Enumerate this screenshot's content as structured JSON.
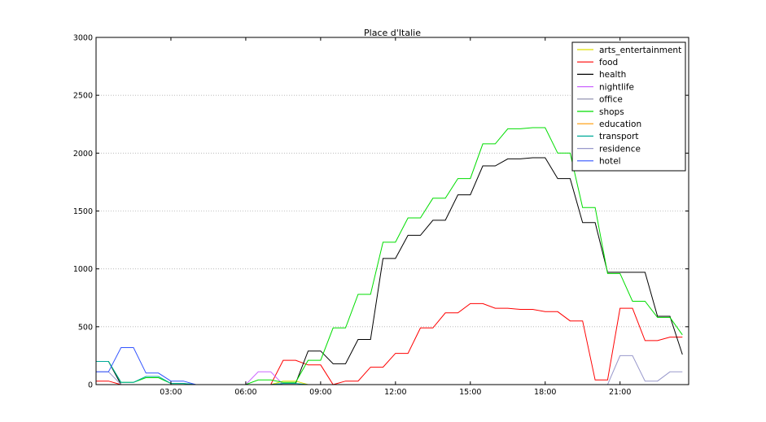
{
  "chart_data": {
    "type": "line",
    "title": "Place d'Italie",
    "xlabel": "",
    "ylabel": "",
    "x_hours": [
      0,
      0.5,
      1,
      1.5,
      2,
      2.5,
      3,
      3.5,
      4,
      4.5,
      5,
      5.5,
      6,
      6.5,
      7,
      7.5,
      8,
      8.5,
      9,
      9.5,
      10,
      10.5,
      11,
      11.5,
      12,
      12.5,
      13,
      13.5,
      14,
      14.5,
      15,
      15.5,
      16,
      16.5,
      17,
      17.5,
      18,
      18.5,
      19,
      19.5,
      20,
      20.5,
      21,
      21.5,
      22,
      22.5,
      23,
      23.5
    ],
    "xlim": [
      0,
      23.75
    ],
    "x_tick_values": [
      3,
      6,
      9,
      12,
      15,
      18,
      21
    ],
    "x_tick_labels": [
      "03:00",
      "06:00",
      "09:00",
      "12:00",
      "15:00",
      "18:00",
      "21:00"
    ],
    "ylim": [
      0,
      3000
    ],
    "y_tick_values": [
      0,
      500,
      1000,
      1500,
      2000,
      2500,
      3000
    ],
    "y_tick_labels": [
      "0",
      "500",
      "1000",
      "1500",
      "2000",
      "2500",
      "3000"
    ],
    "grid": "horizontal dotted",
    "legend_position": "top-right",
    "series": [
      {
        "name": "arts_entertainment",
        "color": "#e0e000",
        "values": [
          0,
          0,
          0,
          0,
          0,
          0,
          0,
          0,
          0,
          0,
          0,
          0,
          0,
          0,
          0,
          30,
          30,
          0,
          0,
          0,
          0,
          0,
          0,
          0,
          0,
          0,
          0,
          0,
          0,
          0,
          0,
          0,
          0,
          0,
          0,
          0,
          0,
          0,
          0,
          0,
          0,
          0,
          0,
          0,
          0,
          0,
          0,
          0
        ]
      },
      {
        "name": "food",
        "color": "#ff0000",
        "values": [
          30,
          30,
          0,
          0,
          0,
          0,
          0,
          0,
          0,
          0,
          0,
          0,
          0,
          0,
          0,
          210,
          210,
          170,
          170,
          0,
          30,
          30,
          150,
          150,
          270,
          270,
          490,
          490,
          620,
          620,
          700,
          700,
          660,
          660,
          650,
          650,
          630,
          630,
          550,
          550,
          40,
          40,
          660,
          660,
          380,
          380,
          410,
          410
        ]
      },
      {
        "name": "health",
        "color": "#000000",
        "values": [
          200,
          200,
          0,
          0,
          0,
          0,
          0,
          0,
          0,
          0,
          0,
          0,
          0,
          0,
          0,
          10,
          10,
          290,
          290,
          180,
          180,
          390,
          390,
          1090,
          1090,
          1290,
          1290,
          1420,
          1420,
          1640,
          1640,
          1890,
          1890,
          1950,
          1950,
          1960,
          1960,
          1780,
          1780,
          1400,
          1400,
          970,
          970,
          970,
          970,
          590,
          590,
          260
        ]
      },
      {
        "name": "nightlife",
        "color": "#cc66ff",
        "values": [
          0,
          0,
          0,
          0,
          0,
          0,
          0,
          0,
          0,
          0,
          0,
          0,
          0,
          110,
          110,
          0,
          0,
          0,
          0,
          0,
          0,
          0,
          0,
          0,
          0,
          0,
          0,
          0,
          0,
          0,
          0,
          0,
          0,
          0,
          0,
          0,
          0,
          0,
          0,
          0,
          0,
          0,
          0,
          0,
          0,
          0,
          0,
          0
        ]
      },
      {
        "name": "office",
        "color": "#8888aa",
        "values": [
          0,
          0,
          0,
          0,
          0,
          0,
          0,
          0,
          0,
          0,
          0,
          0,
          0,
          0,
          0,
          0,
          0,
          0,
          0,
          0,
          0,
          0,
          0,
          0,
          0,
          0,
          0,
          0,
          0,
          0,
          0,
          0,
          0,
          0,
          0,
          0,
          0,
          0,
          0,
          0,
          0,
          0,
          0,
          0,
          0,
          0,
          0,
          0
        ]
      },
      {
        "name": "shops",
        "color": "#00dd00",
        "values": [
          200,
          200,
          20,
          20,
          60,
          60,
          10,
          10,
          0,
          0,
          0,
          0,
          0,
          40,
          40,
          20,
          20,
          210,
          210,
          490,
          490,
          780,
          780,
          1230,
          1230,
          1440,
          1440,
          1610,
          1610,
          1780,
          1780,
          2080,
          2080,
          2210,
          2210,
          2220,
          2220,
          2000,
          2000,
          1530,
          1530,
          960,
          960,
          720,
          720,
          580,
          580,
          430
        ]
      },
      {
        "name": "education",
        "color": "#ff9900",
        "values": [
          0,
          0,
          0,
          0,
          0,
          0,
          0,
          0,
          0,
          0,
          0,
          0,
          0,
          0,
          0,
          0,
          0,
          0,
          0,
          0,
          0,
          0,
          0,
          0,
          0,
          0,
          0,
          0,
          0,
          0,
          0,
          0,
          0,
          0,
          0,
          0,
          0,
          0,
          0,
          0,
          0,
          0,
          0,
          0,
          0,
          0,
          0,
          0
        ]
      },
      {
        "name": "transport",
        "color": "#00aa99",
        "values": [
          200,
          200,
          20,
          20,
          70,
          70,
          10,
          10,
          0,
          0,
          0,
          0,
          0,
          0,
          0,
          10,
          10,
          0,
          0,
          0,
          0,
          0,
          0,
          0,
          0,
          0,
          0,
          0,
          0,
          0,
          0,
          0,
          0,
          0,
          0,
          0,
          0,
          0,
          0,
          0,
          0,
          0,
          0,
          0,
          0,
          0,
          0,
          0
        ]
      },
      {
        "name": "residence",
        "color": "#9999cc",
        "values": [
          110,
          110,
          0,
          0,
          0,
          0,
          0,
          0,
          0,
          0,
          0,
          0,
          0,
          0,
          0,
          0,
          0,
          0,
          0,
          0,
          0,
          0,
          0,
          0,
          0,
          0,
          0,
          0,
          0,
          0,
          0,
          0,
          0,
          0,
          0,
          0,
          0,
          0,
          0,
          0,
          0,
          0,
          250,
          250,
          30,
          30,
          110,
          110
        ]
      },
      {
        "name": "hotel",
        "color": "#3355ff",
        "values": [
          110,
          110,
          320,
          320,
          100,
          100,
          30,
          30,
          0,
          0,
          0,
          0,
          0,
          0,
          0,
          0,
          0,
          0,
          0,
          0,
          0,
          0,
          0,
          0,
          0,
          0,
          0,
          0,
          0,
          0,
          0,
          0,
          0,
          0,
          0,
          0,
          0,
          0,
          0,
          0,
          0,
          0,
          0,
          0,
          0,
          0,
          0,
          0
        ]
      }
    ]
  }
}
